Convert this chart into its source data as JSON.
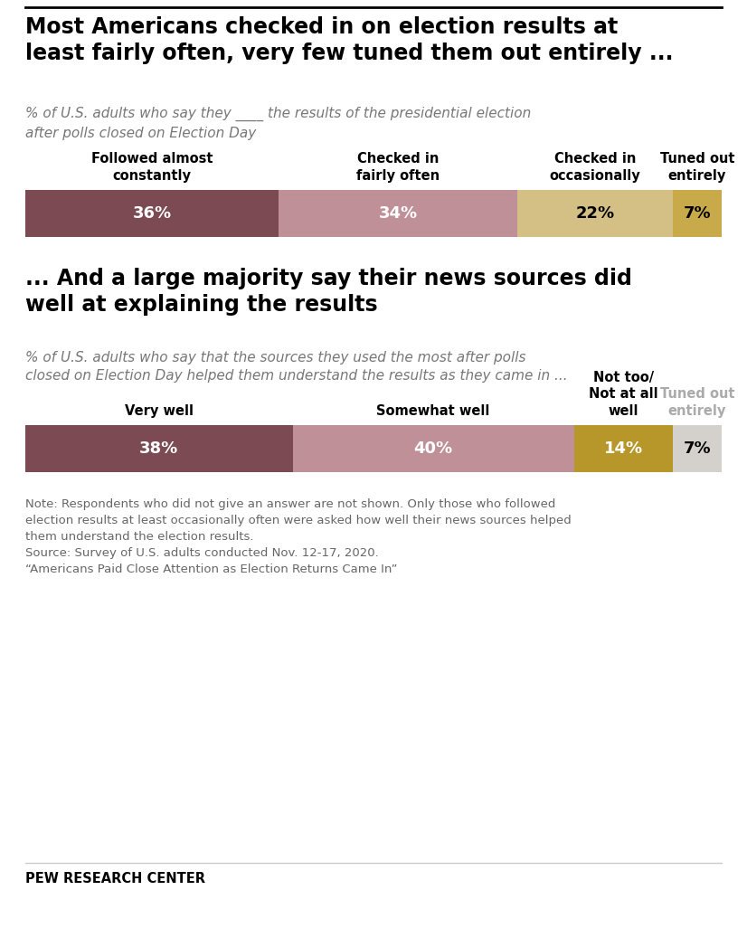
{
  "title1": "Most Americans checked in on election results at\nleast fairly often, very few tuned them out entirely ...",
  "subtitle1": "% of U.S. adults who say they ____ the results of the presidential election\nafter polls closed on Election Day",
  "bar1_values": [
    36,
    34,
    22,
    7
  ],
  "bar1_colors": [
    "#7b4a52",
    "#c09099",
    "#d4bf85",
    "#c8aa4a"
  ],
  "bar1_labels": [
    "36%",
    "34%",
    "22%",
    "7%"
  ],
  "bar1_headers": [
    "Followed almost\nconstantly",
    "Checked in\nfairly often",
    "Checked in\noccasionally",
    "Tuned out\nentirely"
  ],
  "bar1_text_colors": [
    "white",
    "white",
    "black",
    "black"
  ],
  "title2": "... And a large majority say their news sources did\nwell at explaining the results",
  "subtitle2": "% of U.S. adults who say that the sources they used the most after polls\nclosed on Election Day helped them understand the results as they came in ...",
  "bar2_values": [
    38,
    40,
    14,
    7
  ],
  "bar2_colors": [
    "#7b4a52",
    "#c09099",
    "#b8972a",
    "#d4d0cc"
  ],
  "bar2_labels": [
    "38%",
    "40%",
    "14%",
    "7%"
  ],
  "bar2_headers": [
    "Very well",
    "Somewhat well",
    "Not too/\nNot at all\nwell",
    "Tuned out\nentirely"
  ],
  "bar2_text_colors": [
    "white",
    "white",
    "white",
    "black"
  ],
  "bar2_header_colors": [
    "black",
    "black",
    "black",
    "#aaaaaa"
  ],
  "note_text": "Note: Respondents who did not give an answer are not shown. Only those who followed\nelection results at least occasionally often were asked how well their news sources helped\nthem understand the election results.\nSource: Survey of U.S. adults conducted Nov. 12-17, 2020.\n“Americans Paid Close Attention as Election Returns Came In”",
  "source_label": "PEW RESEARCH CENTER",
  "background_color": "#ffffff",
  "top_line_color": "#000000",
  "divider_color": "#cccccc"
}
